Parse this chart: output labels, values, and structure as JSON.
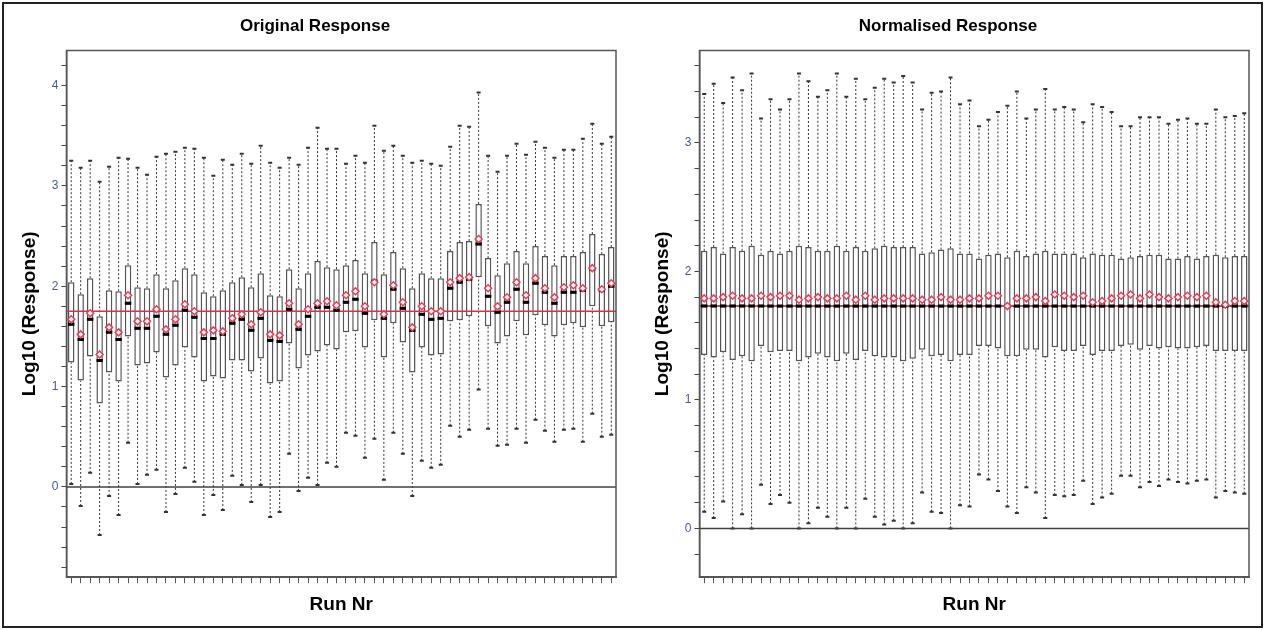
{
  "chart_data": [
    {
      "type": "box",
      "title": "Original Response",
      "xlabel": "Run Nr",
      "ylabel": "Log10 (Response)",
      "tick_labels": "y",
      "grid": false,
      "marker": "diamond",
      "categories": [
        null,
        null,
        null,
        null,
        null,
        null,
        null,
        null,
        null,
        null,
        null,
        null,
        null,
        null,
        null,
        null,
        null,
        null,
        null,
        null,
        null,
        null,
        null,
        null,
        null,
        null,
        null,
        null,
        null,
        null,
        null,
        null,
        null,
        null,
        null,
        null,
        null,
        null,
        null,
        null,
        null,
        null,
        null,
        null,
        null,
        null,
        null,
        null,
        null,
        null,
        null,
        null,
        null,
        null,
        null,
        null,
        null,
        null
      ],
      "ylim": [
        -0.9,
        4.35
      ],
      "yticks": [
        {
          "value": -0.8,
          "label": null
        },
        {
          "value": -0.6,
          "label": null
        },
        {
          "value": -0.4,
          "label": null
        },
        {
          "value": -0.2,
          "label": null
        },
        0,
        {
          "value": 0.2,
          "label": null
        },
        {
          "value": 0.4,
          "label": null
        },
        {
          "value": 0.6,
          "label": null
        },
        {
          "value": 0.8,
          "label": null
        },
        1,
        {
          "value": 1.2,
          "label": null
        },
        {
          "value": 1.4,
          "label": null
        },
        {
          "value": 1.6,
          "label": null
        },
        {
          "value": 1.8,
          "label": null
        },
        2,
        {
          "value": 2.2,
          "label": null
        },
        {
          "value": 2.4,
          "label": null
        },
        {
          "value": 2.6,
          "label": null
        },
        {
          "value": 2.8,
          "label": null
        },
        3,
        {
          "value": 3.2,
          "label": null
        },
        {
          "value": 3.4,
          "label": null
        },
        {
          "value": 3.6,
          "label": null
        },
        {
          "value": 3.8,
          "label": null
        },
        4,
        {
          "value": 4.2,
          "label": null
        }
      ],
      "ref_lines": [
        {
          "axis": "y",
          "value": 0,
          "color": "#404040"
        },
        {
          "axis": "y",
          "value": 1.75,
          "color": "#d0344e"
        }
      ],
      "boxes": [
        {
          "low": 0.03,
          "q1": 1.24,
          "median": 1.62,
          "q3": 2.04,
          "high": 3.25,
          "mean": 1.67
        },
        {
          "low": -0.19,
          "q1": 1.06,
          "median": 1.47,
          "q3": 1.92,
          "high": 3.18,
          "mean": 1.52
        },
        {
          "low": 0.14,
          "q1": 1.3,
          "median": 1.67,
          "q3": 2.08,
          "high": 3.25,
          "mean": 1.73
        },
        {
          "low": -0.48,
          "q1": 0.83,
          "median": 1.26,
          "q3": 1.7,
          "high": 3.04,
          "mean": 1.32
        },
        {
          "low": -0.09,
          "q1": 1.14,
          "median": 1.54,
          "q3": 1.96,
          "high": 3.19,
          "mean": 1.59
        },
        {
          "low": -0.28,
          "q1": 1.05,
          "median": 1.47,
          "q3": 1.95,
          "high": 3.28,
          "mean": 1.54
        },
        {
          "low": 0.44,
          "q1": 1.5,
          "median": 1.83,
          "q3": 2.21,
          "high": 3.27,
          "mean": 1.91
        },
        {
          "low": 0.03,
          "q1": 1.21,
          "median": 1.58,
          "q3": 1.99,
          "high": 3.18,
          "mean": 1.65
        },
        {
          "low": 0.12,
          "q1": 1.23,
          "median": 1.58,
          "q3": 1.98,
          "high": 3.11,
          "mean": 1.65
        },
        {
          "low": 0.17,
          "q1": 1.34,
          "median": 1.7,
          "q3": 2.12,
          "high": 3.29,
          "mean": 1.77
        },
        {
          "low": -0.25,
          "q1": 1.09,
          "median": 1.52,
          "q3": 1.98,
          "high": 3.32,
          "mean": 1.57
        },
        {
          "low": -0.07,
          "q1": 1.21,
          "median": 1.61,
          "q3": 2.06,
          "high": 3.34,
          "mean": 1.67
        },
        {
          "low": 0.19,
          "q1": 1.39,
          "median": 1.76,
          "q3": 2.18,
          "high": 3.38,
          "mean": 1.82
        },
        {
          "low": 0.05,
          "q1": 1.29,
          "median": 1.69,
          "q3": 2.12,
          "high": 3.37,
          "mean": 1.75
        },
        {
          "low": -0.28,
          "q1": 1.05,
          "median": 1.48,
          "q3": 1.94,
          "high": 3.28,
          "mean": 1.54
        },
        {
          "low": -0.08,
          "q1": 1.1,
          "median": 1.48,
          "q3": 1.9,
          "high": 3.1,
          "mean": 1.56
        },
        {
          "low": -0.23,
          "q1": 1.08,
          "median": 1.52,
          "q3": 1.96,
          "high": 3.26,
          "mean": 1.55
        },
        {
          "low": 0.11,
          "q1": 1.26,
          "median": 1.63,
          "q3": 2.04,
          "high": 3.21,
          "mean": 1.68
        },
        {
          "low": 0.02,
          "q1": 1.26,
          "median": 1.67,
          "q3": 2.09,
          "high": 3.32,
          "mean": 1.72
        },
        {
          "low": -0.15,
          "q1": 1.15,
          "median": 1.56,
          "q3": 1.99,
          "high": 3.22,
          "mean": 1.62
        },
        {
          "low": 0.02,
          "q1": 1.28,
          "median": 1.68,
          "q3": 2.13,
          "high": 3.4,
          "mean": 1.74
        },
        {
          "low": -0.3,
          "q1": 1.03,
          "median": 1.46,
          "q3": 1.91,
          "high": 3.23,
          "mean": 1.52
        },
        {
          "low": -0.25,
          "q1": 1.05,
          "median": 1.45,
          "q3": 1.9,
          "high": 3.18,
          "mean": 1.51
        },
        {
          "low": 0.33,
          "q1": 1.43,
          "median": 1.77,
          "q3": 2.17,
          "high": 3.28,
          "mean": 1.83
        },
        {
          "low": -0.04,
          "q1": 1.18,
          "median": 1.57,
          "q3": 1.98,
          "high": 3.21,
          "mean": 1.62
        },
        {
          "low": 0.09,
          "q1": 1.31,
          "median": 1.7,
          "q3": 2.13,
          "high": 3.38,
          "mean": 1.77
        },
        {
          "low": 0.02,
          "q1": 1.35,
          "median": 1.79,
          "q3": 2.25,
          "high": 3.58,
          "mean": 1.83
        },
        {
          "low": 0.24,
          "q1": 1.41,
          "median": 1.79,
          "q3": 2.19,
          "high": 3.37,
          "mean": 1.85
        },
        {
          "low": 0.2,
          "q1": 1.37,
          "median": 1.76,
          "q3": 2.17,
          "high": 3.37,
          "mean": 1.81
        },
        {
          "low": 0.54,
          "q1": 1.54,
          "median": 1.84,
          "q3": 2.21,
          "high": 3.22,
          "mean": 1.91
        },
        {
          "low": 0.51,
          "q1": 1.55,
          "median": 1.87,
          "q3": 2.26,
          "high": 3.3,
          "mean": 1.95
        },
        {
          "low": 0.29,
          "q1": 1.39,
          "median": 1.73,
          "q3": 2.13,
          "high": 3.23,
          "mean": 1.8
        },
        {
          "low": 0.48,
          "q1": 1.66,
          "median": 2.05,
          "q3": 2.44,
          "high": 3.6,
          "mean": 2.04
        },
        {
          "low": 0.07,
          "q1": 1.29,
          "median": 1.68,
          "q3": 2.12,
          "high": 3.35,
          "mean": 1.72
        },
        {
          "low": 0.54,
          "q1": 1.63,
          "median": 1.97,
          "q3": 2.34,
          "high": 3.4,
          "mean": 2.01
        },
        {
          "low": 0.33,
          "q1": 1.44,
          "median": 1.78,
          "q3": 2.18,
          "high": 3.3,
          "mean": 1.84
        },
        {
          "low": -0.09,
          "q1": 1.14,
          "median": 1.56,
          "q3": 1.98,
          "high": 3.23,
          "mean": 1.59
        },
        {
          "low": 0.26,
          "q1": 1.39,
          "median": 1.72,
          "q3": 2.13,
          "high": 3.25,
          "mean": 1.8
        },
        {
          "low": 0.19,
          "q1": 1.31,
          "median": 1.67,
          "q3": 2.08,
          "high": 3.22,
          "mean": 1.75
        },
        {
          "low": 0.22,
          "q1": 1.32,
          "median": 1.68,
          "q3": 2.08,
          "high": 3.2,
          "mean": 1.75
        },
        {
          "low": 0.61,
          "q1": 1.65,
          "median": 1.98,
          "q3": 2.35,
          "high": 3.39,
          "mean": 2.04
        },
        {
          "low": 0.5,
          "q1": 1.66,
          "median": 2.04,
          "q3": 2.44,
          "high": 3.6,
          "mean": 2.08
        },
        {
          "low": 0.57,
          "q1": 1.7,
          "median": 2.07,
          "q3": 2.45,
          "high": 3.59,
          "mean": 2.09
        },
        {
          "low": 0.97,
          "q1": 2.09,
          "median": 2.42,
          "q3": 2.82,
          "high": 3.93,
          "mean": 2.47
        },
        {
          "low": 0.58,
          "q1": 1.6,
          "median": 1.9,
          "q3": 2.28,
          "high": 3.3,
          "mean": 1.98
        },
        {
          "low": 0.41,
          "q1": 1.43,
          "median": 1.74,
          "q3": 2.11,
          "high": 3.14,
          "mean": 1.8
        },
        {
          "low": 0.42,
          "q1": 1.5,
          "median": 1.84,
          "q3": 2.23,
          "high": 3.3,
          "mean": 1.89
        },
        {
          "low": 0.58,
          "q1": 1.65,
          "median": 1.97,
          "q3": 2.35,
          "high": 3.42,
          "mean": 2.04
        },
        {
          "low": 0.44,
          "q1": 1.51,
          "median": 1.84,
          "q3": 2.23,
          "high": 3.31,
          "mean": 1.91
        },
        {
          "low": 0.67,
          "q1": 1.71,
          "median": 2.03,
          "q3": 2.4,
          "high": 3.44,
          "mean": 2.08
        },
        {
          "low": 0.56,
          "q1": 1.61,
          "median": 1.94,
          "q3": 2.3,
          "high": 3.38,
          "mean": 1.98
        },
        {
          "low": 0.45,
          "q1": 1.5,
          "median": 1.83,
          "q3": 2.21,
          "high": 3.28,
          "mean": 1.89
        },
        {
          "low": 0.57,
          "q1": 1.61,
          "median": 1.94,
          "q3": 2.3,
          "high": 3.36,
          "mean": 1.99
        },
        {
          "low": 0.58,
          "q1": 1.63,
          "median": 1.94,
          "q3": 2.3,
          "high": 3.36,
          "mean": 2.01
        },
        {
          "low": 0.45,
          "q1": 1.59,
          "median": 1.96,
          "q3": 2.34,
          "high": 3.47,
          "mean": 1.98
        },
        {
          "low": 0.73,
          "q1": 1.8,
          "median": 2.17,
          "q3": 2.52,
          "high": 3.62,
          "mean": 2.18
        },
        {
          "low": 0.5,
          "q1": 1.6,
          "median": 1.96,
          "q3": 2.32,
          "high": 3.42,
          "mean": 1.97
        },
        {
          "low": 0.52,
          "q1": 1.64,
          "median": 2.0,
          "q3": 2.39,
          "high": 3.49,
          "mean": 2.03
        }
      ]
    },
    {
      "type": "box",
      "title": "Normalised Response",
      "xlabel": "Run Nr",
      "ylabel": "Log10 (Response)",
      "tick_labels": "y",
      "grid": false,
      "marker": "diamond",
      "categories": [
        null,
        null,
        null,
        null,
        null,
        null,
        null,
        null,
        null,
        null,
        null,
        null,
        null,
        null,
        null,
        null,
        null,
        null,
        null,
        null,
        null,
        null,
        null,
        null,
        null,
        null,
        null,
        null,
        null,
        null,
        null,
        null,
        null,
        null,
        null,
        null,
        null,
        null,
        null,
        null,
        null,
        null,
        null,
        null,
        null,
        null,
        null,
        null,
        null,
        null,
        null,
        null,
        null,
        null,
        null,
        null,
        null,
        null
      ],
      "ylim": [
        -0.38,
        3.72
      ],
      "yticks": [
        {
          "value": -0.2,
          "label": null
        },
        0,
        {
          "value": 0.2,
          "label": null
        },
        {
          "value": 0.4,
          "label": null
        },
        {
          "value": 0.6,
          "label": null
        },
        {
          "value": 0.8,
          "label": null
        },
        1,
        {
          "value": 1.2,
          "label": null
        },
        {
          "value": 1.4,
          "label": null
        },
        {
          "value": 1.6,
          "label": null
        },
        {
          "value": 1.8,
          "label": null
        },
        2,
        {
          "value": 2.2,
          "label": null
        },
        {
          "value": 2.4,
          "label": null
        },
        {
          "value": 2.6,
          "label": null
        },
        {
          "value": 2.8,
          "label": null
        },
        3,
        {
          "value": 3.2,
          "label": null
        },
        {
          "value": 3.4,
          "label": null
        },
        {
          "value": 3.6,
          "label": null
        }
      ],
      "ref_lines": [
        {
          "axis": "y",
          "value": 0,
          "color": "#404040"
        },
        {
          "axis": "y",
          "value": 1.73,
          "color": "#a01030"
        }
      ],
      "boxes": [
        {
          "low": 0.13,
          "q1": 1.35,
          "median": 1.73,
          "q3": 2.16,
          "high": 3.38,
          "mean": 1.79
        },
        {
          "low": 0.08,
          "q1": 1.33,
          "median": 1.73,
          "q3": 2.19,
          "high": 3.46,
          "mean": 1.79
        },
        {
          "low": 0.21,
          "q1": 1.37,
          "median": 1.73,
          "q3": 2.14,
          "high": 3.31,
          "mean": 1.8
        },
        {
          "low": 0.0,
          "q1": 1.31,
          "median": 1.73,
          "q3": 2.19,
          "high": 3.51,
          "mean": 1.81
        },
        {
          "low": 0.11,
          "q1": 1.34,
          "median": 1.73,
          "q3": 2.16,
          "high": 3.41,
          "mean": 1.79
        },
        {
          "low": 0.0,
          "q1": 1.3,
          "median": 1.73,
          "q3": 2.2,
          "high": 3.54,
          "mean": 1.79
        },
        {
          "low": 0.34,
          "q1": 1.42,
          "median": 1.73,
          "q3": 2.13,
          "high": 3.19,
          "mean": 1.81
        },
        {
          "low": 0.19,
          "q1": 1.37,
          "median": 1.73,
          "q3": 2.16,
          "high": 3.34,
          "mean": 1.8
        },
        {
          "low": 0.26,
          "q1": 1.38,
          "median": 1.73,
          "q3": 2.14,
          "high": 3.26,
          "mean": 1.81
        },
        {
          "low": 0.2,
          "q1": 1.38,
          "median": 1.73,
          "q3": 2.16,
          "high": 3.34,
          "mean": 1.81
        },
        {
          "low": 0.0,
          "q1": 1.3,
          "median": 1.73,
          "q3": 2.2,
          "high": 3.54,
          "mean": 1.78
        },
        {
          "low": 0.04,
          "q1": 1.33,
          "median": 1.73,
          "q3": 2.19,
          "high": 3.48,
          "mean": 1.79
        },
        {
          "low": 0.16,
          "q1": 1.36,
          "median": 1.73,
          "q3": 2.16,
          "high": 3.36,
          "mean": 1.8
        },
        {
          "low": 0.09,
          "q1": 1.33,
          "median": 1.73,
          "q3": 2.16,
          "high": 3.41,
          "mean": 1.79
        },
        {
          "low": 0.0,
          "q1": 1.3,
          "median": 1.73,
          "q3": 2.2,
          "high": 3.54,
          "mean": 1.79
        },
        {
          "low": 0.16,
          "q1": 1.36,
          "median": 1.73,
          "q3": 2.16,
          "high": 3.36,
          "mean": 1.81
        },
        {
          "low": 0.0,
          "q1": 1.31,
          "median": 1.73,
          "q3": 2.19,
          "high": 3.5,
          "mean": 1.78
        },
        {
          "low": 0.23,
          "q1": 1.38,
          "median": 1.73,
          "q3": 2.16,
          "high": 3.34,
          "mean": 1.81
        },
        {
          "low": 0.09,
          "q1": 1.34,
          "median": 1.73,
          "q3": 2.18,
          "high": 3.43,
          "mean": 1.78
        },
        {
          "low": 0.03,
          "q1": 1.33,
          "median": 1.73,
          "q3": 2.2,
          "high": 3.5,
          "mean": 1.79
        },
        {
          "low": 0.06,
          "q1": 1.33,
          "median": 1.73,
          "q3": 2.19,
          "high": 3.47,
          "mean": 1.79
        },
        {
          "low": 0.0,
          "q1": 1.3,
          "median": 1.73,
          "q3": 2.19,
          "high": 3.52,
          "mean": 1.79
        },
        {
          "low": 0.04,
          "q1": 1.32,
          "median": 1.73,
          "q3": 2.19,
          "high": 3.47,
          "mean": 1.79
        },
        {
          "low": 0.28,
          "q1": 1.39,
          "median": 1.73,
          "q3": 2.14,
          "high": 3.26,
          "mean": 1.78
        },
        {
          "low": 0.13,
          "q1": 1.34,
          "median": 1.73,
          "q3": 2.15,
          "high": 3.39,
          "mean": 1.78
        },
        {
          "low": 0.12,
          "q1": 1.35,
          "median": 1.73,
          "q3": 2.17,
          "high": 3.4,
          "mean": 1.8
        },
        {
          "low": 0.0,
          "q1": 1.3,
          "median": 1.73,
          "q3": 2.18,
          "high": 3.51,
          "mean": 1.78
        },
        {
          "low": 0.18,
          "q1": 1.35,
          "median": 1.73,
          "q3": 2.14,
          "high": 3.3,
          "mean": 1.78
        },
        {
          "low": 0.17,
          "q1": 1.35,
          "median": 1.73,
          "q3": 2.14,
          "high": 3.33,
          "mean": 1.79
        },
        {
          "low": 0.42,
          "q1": 1.42,
          "median": 1.73,
          "q3": 2.1,
          "high": 3.13,
          "mean": 1.79
        },
        {
          "low": 0.38,
          "q1": 1.42,
          "median": 1.73,
          "q3": 2.13,
          "high": 3.18,
          "mean": 1.81
        },
        {
          "low": 0.29,
          "q1": 1.4,
          "median": 1.73,
          "q3": 2.14,
          "high": 3.24,
          "mean": 1.81
        },
        {
          "low": 0.17,
          "q1": 1.34,
          "median": 1.73,
          "q3": 2.11,
          "high": 3.29,
          "mean": 1.73
        },
        {
          "low": 0.12,
          "q1": 1.34,
          "median": 1.73,
          "q3": 2.16,
          "high": 3.4,
          "mean": 1.79
        },
        {
          "low": 0.32,
          "q1": 1.39,
          "median": 1.73,
          "q3": 2.12,
          "high": 3.19,
          "mean": 1.79
        },
        {
          "low": 0.28,
          "q1": 1.39,
          "median": 1.73,
          "q3": 2.14,
          "high": 3.26,
          "mean": 1.8
        },
        {
          "low": 0.08,
          "q1": 1.33,
          "median": 1.73,
          "q3": 2.16,
          "high": 3.42,
          "mean": 1.77
        },
        {
          "low": 0.26,
          "q1": 1.41,
          "median": 1.73,
          "q3": 2.14,
          "high": 3.26,
          "mean": 1.82
        },
        {
          "low": 0.25,
          "q1": 1.38,
          "median": 1.73,
          "q3": 2.14,
          "high": 3.28,
          "mean": 1.81
        },
        {
          "low": 0.26,
          "q1": 1.38,
          "median": 1.73,
          "q3": 2.14,
          "high": 3.26,
          "mean": 1.8
        },
        {
          "low": 0.37,
          "q1": 1.42,
          "median": 1.73,
          "q3": 2.11,
          "high": 3.16,
          "mean": 1.81
        },
        {
          "low": 0.19,
          "q1": 1.35,
          "median": 1.73,
          "q3": 2.14,
          "high": 3.3,
          "mean": 1.76
        },
        {
          "low": 0.24,
          "q1": 1.38,
          "median": 1.73,
          "q3": 2.13,
          "high": 3.28,
          "mean": 1.77
        },
        {
          "low": 0.27,
          "q1": 1.38,
          "median": 1.73,
          "q3": 2.13,
          "high": 3.24,
          "mean": 1.79
        },
        {
          "low": 0.41,
          "q1": 1.42,
          "median": 1.73,
          "q3": 2.1,
          "high": 3.13,
          "mean": 1.81
        },
        {
          "low": 0.41,
          "q1": 1.43,
          "median": 1.73,
          "q3": 2.11,
          "high": 3.13,
          "mean": 1.82
        },
        {
          "low": 0.32,
          "q1": 1.39,
          "median": 1.73,
          "q3": 2.12,
          "high": 3.2,
          "mean": 1.79
        },
        {
          "low": 0.36,
          "q1": 1.42,
          "median": 1.73,
          "q3": 2.13,
          "high": 3.2,
          "mean": 1.82
        },
        {
          "low": 0.33,
          "q1": 1.4,
          "median": 1.73,
          "q3": 2.13,
          "high": 3.2,
          "mean": 1.8
        },
        {
          "low": 0.38,
          "q1": 1.41,
          "median": 1.73,
          "q3": 2.1,
          "high": 3.15,
          "mean": 1.79
        },
        {
          "low": 0.36,
          "q1": 1.4,
          "median": 1.73,
          "q3": 2.1,
          "high": 3.18,
          "mean": 1.8
        },
        {
          "low": 0.35,
          "q1": 1.4,
          "median": 1.73,
          "q3": 2.12,
          "high": 3.19,
          "mean": 1.81
        },
        {
          "low": 0.37,
          "q1": 1.41,
          "median": 1.73,
          "q3": 2.1,
          "high": 3.15,
          "mean": 1.8
        },
        {
          "low": 0.38,
          "q1": 1.42,
          "median": 1.73,
          "q3": 2.12,
          "high": 3.15,
          "mean": 1.81
        },
        {
          "low": 0.24,
          "q1": 1.38,
          "median": 1.73,
          "q3": 2.13,
          "high": 3.26,
          "mean": 1.76
        },
        {
          "low": 0.29,
          "q1": 1.38,
          "median": 1.73,
          "q3": 2.11,
          "high": 3.2,
          "mean": 1.74
        },
        {
          "low": 0.28,
          "q1": 1.38,
          "median": 1.73,
          "q3": 2.12,
          "high": 3.21,
          "mean": 1.77
        },
        {
          "low": 0.27,
          "q1": 1.38,
          "median": 1.73,
          "q3": 2.12,
          "high": 3.23,
          "mean": 1.77
        }
      ]
    }
  ]
}
